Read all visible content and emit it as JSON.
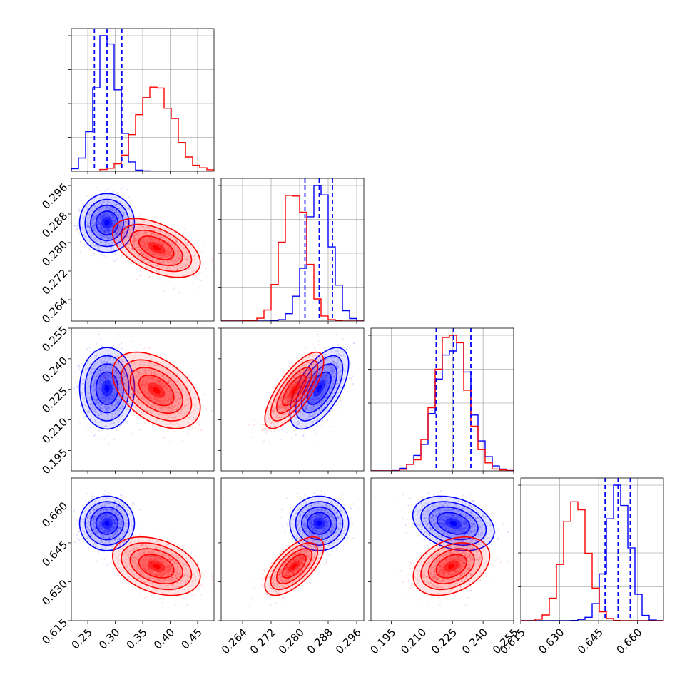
{
  "chart_data": {
    "type": "corner",
    "params": [
      {
        "range": [
          0.22,
          0.48
        ],
        "ticks": [
          "0.25",
          "0.30",
          "0.35",
          "0.40",
          "0.45"
        ],
        "tick_values": [
          0.25,
          0.3,
          0.35,
          0.4,
          0.45
        ]
      },
      {
        "range": [
          0.258,
          0.298
        ],
        "ticks": [
          "0.264",
          "0.272",
          "0.280",
          "0.288",
          "0.296"
        ],
        "tick_values": [
          0.264,
          0.272,
          0.28,
          0.288,
          0.296
        ]
      },
      {
        "range": [
          0.185,
          0.255
        ],
        "ticks": [
          "0.195",
          "0.210",
          "0.225",
          "0.240",
          "0.255"
        ],
        "tick_values": [
          0.195,
          0.21,
          0.225,
          0.24,
          0.255
        ]
      },
      {
        "range": [
          0.615,
          0.67
        ],
        "ticks": [
          "0.615",
          "0.630",
          "0.645",
          "0.660"
        ],
        "tick_values": [
          0.615,
          0.63,
          0.645,
          0.66
        ]
      }
    ],
    "series": [
      {
        "color": "#0000ff",
        "mean": [
          0.285,
          0.2855,
          0.2255,
          0.6525
        ],
        "sigma": [
          0.02,
          0.0033,
          0.008,
          0.0042
        ],
        "corr": [
          [
            1,
            0,
            0,
            0
          ],
          [
            0,
            1,
            0.6,
            0
          ],
          [
            0,
            0.6,
            1,
            -0.3
          ],
          [
            0,
            0,
            -0.3,
            1
          ]
        ],
        "quantiles": [
          [
            0.262,
            0.285,
            0.312
          ],
          [
            0.2815,
            0.2855,
            0.2892
          ],
          [
            0.217,
            0.2255,
            0.234
          ],
          [
            0.6475,
            0.6525,
            0.6572
          ]
        ]
      },
      {
        "color": "#ff0000",
        "mean": [
          0.375,
          0.2785,
          0.2245,
          0.636
        ],
        "sigma": [
          0.032,
          0.0033,
          0.0075,
          0.0045
        ],
        "corr": [
          [
            1,
            -0.5,
            -0.45,
            -0.35
          ],
          [
            -0.5,
            1,
            0.75,
            0.65
          ],
          [
            -0.45,
            0.75,
            1,
            0.35
          ],
          [
            -0.35,
            0.65,
            0.35,
            1
          ]
        ]
      }
    ],
    "grid": true,
    "legend": "none"
  }
}
